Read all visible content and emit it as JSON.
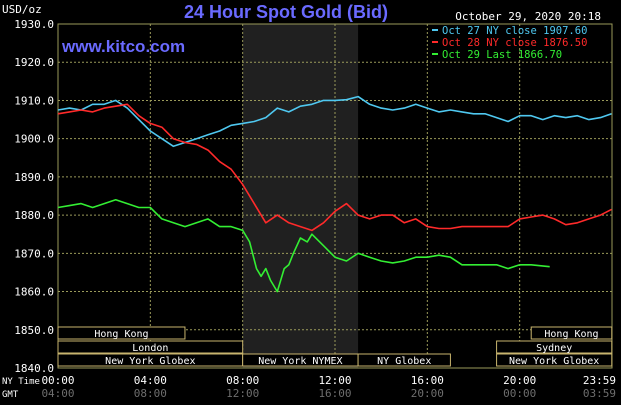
{
  "header": {
    "title": "24 Hour Spot Gold (Bid)",
    "website": "www.kitco.com",
    "datetime": "October 29, 2020 20:18"
  },
  "colors": {
    "background": "#000000",
    "plot_background": "#000000",
    "grid": "#9a9a5a",
    "ny_session_shade": "#202020",
    "title": "#6a6aff",
    "website": "#6a6aff",
    "axis_text": "#ffffff",
    "session_bar_border": "#c8b46e",
    "session_bar_fill": "#000000"
  },
  "chart_data": {
    "type": "line",
    "title": "24 Hour Spot Gold (Bid)",
    "ylabel": "USD/oz",
    "ylim": [
      1840,
      1930
    ],
    "yticks": [
      "1930.0",
      "1920.0",
      "1910.0",
      "1900.0",
      "1890.0",
      "1880.0",
      "1870.0",
      "1860.0",
      "1850.0",
      "1840.0"
    ],
    "xlim": [
      0,
      24
    ],
    "xticks_ny": [
      "00:00",
      "04:00",
      "08:00",
      "12:00",
      "16:00",
      "20:00",
      "23:59"
    ],
    "xticks_gmt": [
      "04:00",
      "08:00",
      "12:00",
      "16:00",
      "20:00",
      "00:00",
      "03:59"
    ],
    "xaxis_label_ny": "NY Time",
    "xaxis_label_gmt": "GMT",
    "grid": true,
    "legend_position": "top-right",
    "ny_session_shade_hours": [
      8,
      13
    ],
    "series": [
      {
        "name": "Oct 27 NY close 1907.60",
        "color": "#4fc8f0",
        "x": [
          0,
          0.5,
          1,
          1.5,
          2,
          2.5,
          3,
          3.5,
          4,
          4.5,
          5,
          5.5,
          6,
          6.5,
          7,
          7.5,
          8,
          8.5,
          9,
          9.5,
          10,
          10.5,
          11,
          11.5,
          12,
          12.5,
          13,
          13.5,
          14,
          14.5,
          15,
          15.5,
          16,
          16.5,
          17,
          17.5,
          18,
          18.5,
          19,
          19.5,
          20,
          20.5,
          21,
          21.5,
          22,
          22.5,
          23,
          23.5,
          23.98
        ],
        "y": [
          1907.5,
          1908,
          1907.5,
          1909,
          1909,
          1910,
          1908,
          1905,
          1902,
          1900,
          1898,
          1899,
          1900,
          1901,
          1902,
          1903.5,
          1904,
          1904.5,
          1905.5,
          1908,
          1907,
          1908.5,
          1909,
          1910,
          1910,
          1910.2,
          1911,
          1909,
          1908,
          1907.5,
          1908,
          1909,
          1908,
          1907,
          1907.5,
          1907,
          1906.5,
          1906.5,
          1905.5,
          1904.5,
          1906,
          1906,
          1905,
          1906,
          1905.5,
          1906,
          1905,
          1905.5,
          1906.5
        ]
      },
      {
        "name": "Oct 28 NY close 1876.50",
        "color": "#ff2a2a",
        "x": [
          0,
          0.5,
          1,
          1.5,
          2,
          2.5,
          3,
          3.5,
          4,
          4.5,
          5,
          5.5,
          6,
          6.5,
          7,
          7.5,
          8,
          8.5,
          9,
          9.5,
          10,
          10.5,
          11,
          11.5,
          12,
          12.5,
          13,
          13.5,
          14,
          14.5,
          15,
          15.5,
          16,
          16.5,
          17,
          17.5,
          18,
          18.5,
          19,
          19.5,
          20,
          20.5,
          21,
          21.5,
          22,
          22.5,
          23,
          23.5,
          23.98
        ],
        "y": [
          1906.5,
          1907,
          1907.5,
          1907,
          1908,
          1908.5,
          1909,
          1906,
          1904,
          1903,
          1900,
          1899,
          1898.5,
          1897,
          1894,
          1892,
          1888,
          1883,
          1878,
          1880,
          1878,
          1877,
          1876,
          1878,
          1881,
          1883,
          1880,
          1879,
          1880,
          1880,
          1878,
          1879,
          1877,
          1876.5,
          1876.5,
          1877,
          1877,
          1877,
          1877,
          1877,
          1879,
          1879.5,
          1880,
          1879,
          1877.5,
          1878,
          1879,
          1880,
          1881.5
        ]
      },
      {
        "name": "Oct 29 Last 1866.70",
        "color": "#33ee33",
        "x": [
          0,
          0.5,
          1,
          1.5,
          2,
          2.5,
          3,
          3.5,
          4,
          4.5,
          5,
          5.5,
          6,
          6.5,
          7,
          7.5,
          8,
          8.3,
          8.6,
          8.8,
          9,
          9.2,
          9.5,
          9.8,
          10,
          10.2,
          10.5,
          10.8,
          11,
          11.5,
          12,
          12.5,
          13,
          13.5,
          14,
          14.5,
          15,
          15.5,
          16,
          16.5,
          17,
          17.5,
          18,
          18.5,
          19,
          19.5,
          20,
          20.5,
          21.3
        ],
        "y": [
          1882,
          1882.5,
          1883,
          1882,
          1883,
          1884,
          1883,
          1882,
          1882,
          1879,
          1878,
          1877,
          1878,
          1879,
          1877,
          1877,
          1876,
          1873,
          1866,
          1864,
          1866,
          1863,
          1860,
          1866,
          1867,
          1870,
          1874,
          1873,
          1875,
          1872,
          1869,
          1868,
          1870,
          1869,
          1868,
          1867.5,
          1868,
          1869,
          1869,
          1869.5,
          1869,
          1867,
          1867,
          1867,
          1867,
          1866,
          1867,
          1867,
          1866.5
        ]
      }
    ]
  },
  "sessions": [
    {
      "label": "Hong Kong",
      "start": 0,
      "end": 5.5,
      "row": 0
    },
    {
      "label": "London",
      "start": 0,
      "end": 8,
      "row": 1
    },
    {
      "label": "New York Globex",
      "start": 0,
      "end": 8,
      "row": 2
    },
    {
      "label": "New York NYMEX",
      "start": 8,
      "end": 13,
      "row": 2
    },
    {
      "label": "NY Globex",
      "start": 13,
      "end": 17,
      "row": 2
    },
    {
      "label": "Hong Kong",
      "start": 20.5,
      "end": 23.99,
      "row": 0
    },
    {
      "label": "Sydney",
      "start": 19,
      "end": 23.99,
      "row": 1
    },
    {
      "label": "New York Globex",
      "start": 19,
      "end": 23.99,
      "row": 2
    }
  ]
}
